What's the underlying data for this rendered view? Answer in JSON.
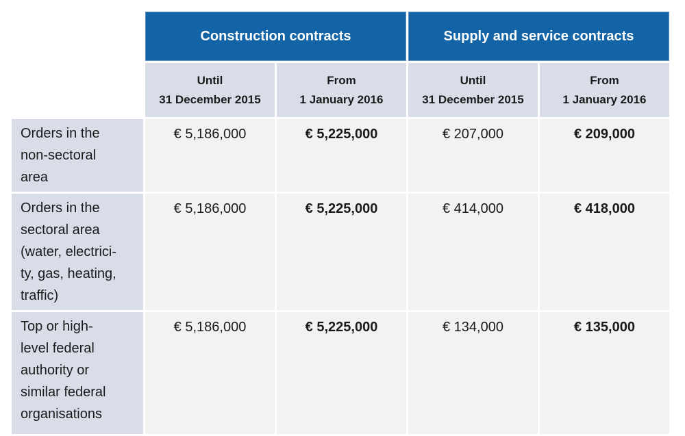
{
  "table": {
    "group_headers": [
      {
        "label": "Construction contracts"
      },
      {
        "label": "Supply and service contracts"
      }
    ],
    "column_headers": [
      {
        "label": "Until\n31 December 2015"
      },
      {
        "label": "From\n1 January 2016"
      },
      {
        "label": "Until\n31 December 2015"
      },
      {
        "label": "From\n1 January 2016"
      }
    ],
    "rows": [
      {
        "label": "Orders in the\nnon-sectoral\narea",
        "values": [
          "€ 5,186,000",
          "€ 5,225,000",
          "€ 207,000",
          "€ 209,000"
        ]
      },
      {
        "label": "Orders in the\nsectoral area\n(water, electrici-\nty, gas, heating,\ntraffic)",
        "values": [
          "€ 5,186,000",
          "€ 5,225,000",
          "€ 414,000",
          "€ 418,000"
        ]
      },
      {
        "label": "Top or high-\nlevel federal\nauthority or\nsimilar federal\norganisations",
        "values": [
          "€ 5,186,000",
          "€ 5,225,000",
          "€ 134,000",
          "€ 135,000"
        ]
      }
    ],
    "colors": {
      "header_blue": "#1363a7",
      "header_blue_border": "#5b8fc6",
      "lavender": "#d9dde8",
      "cell_gray": "#f2f2f0",
      "text": "#1a1a1a",
      "header_text": "#ffffff"
    }
  }
}
